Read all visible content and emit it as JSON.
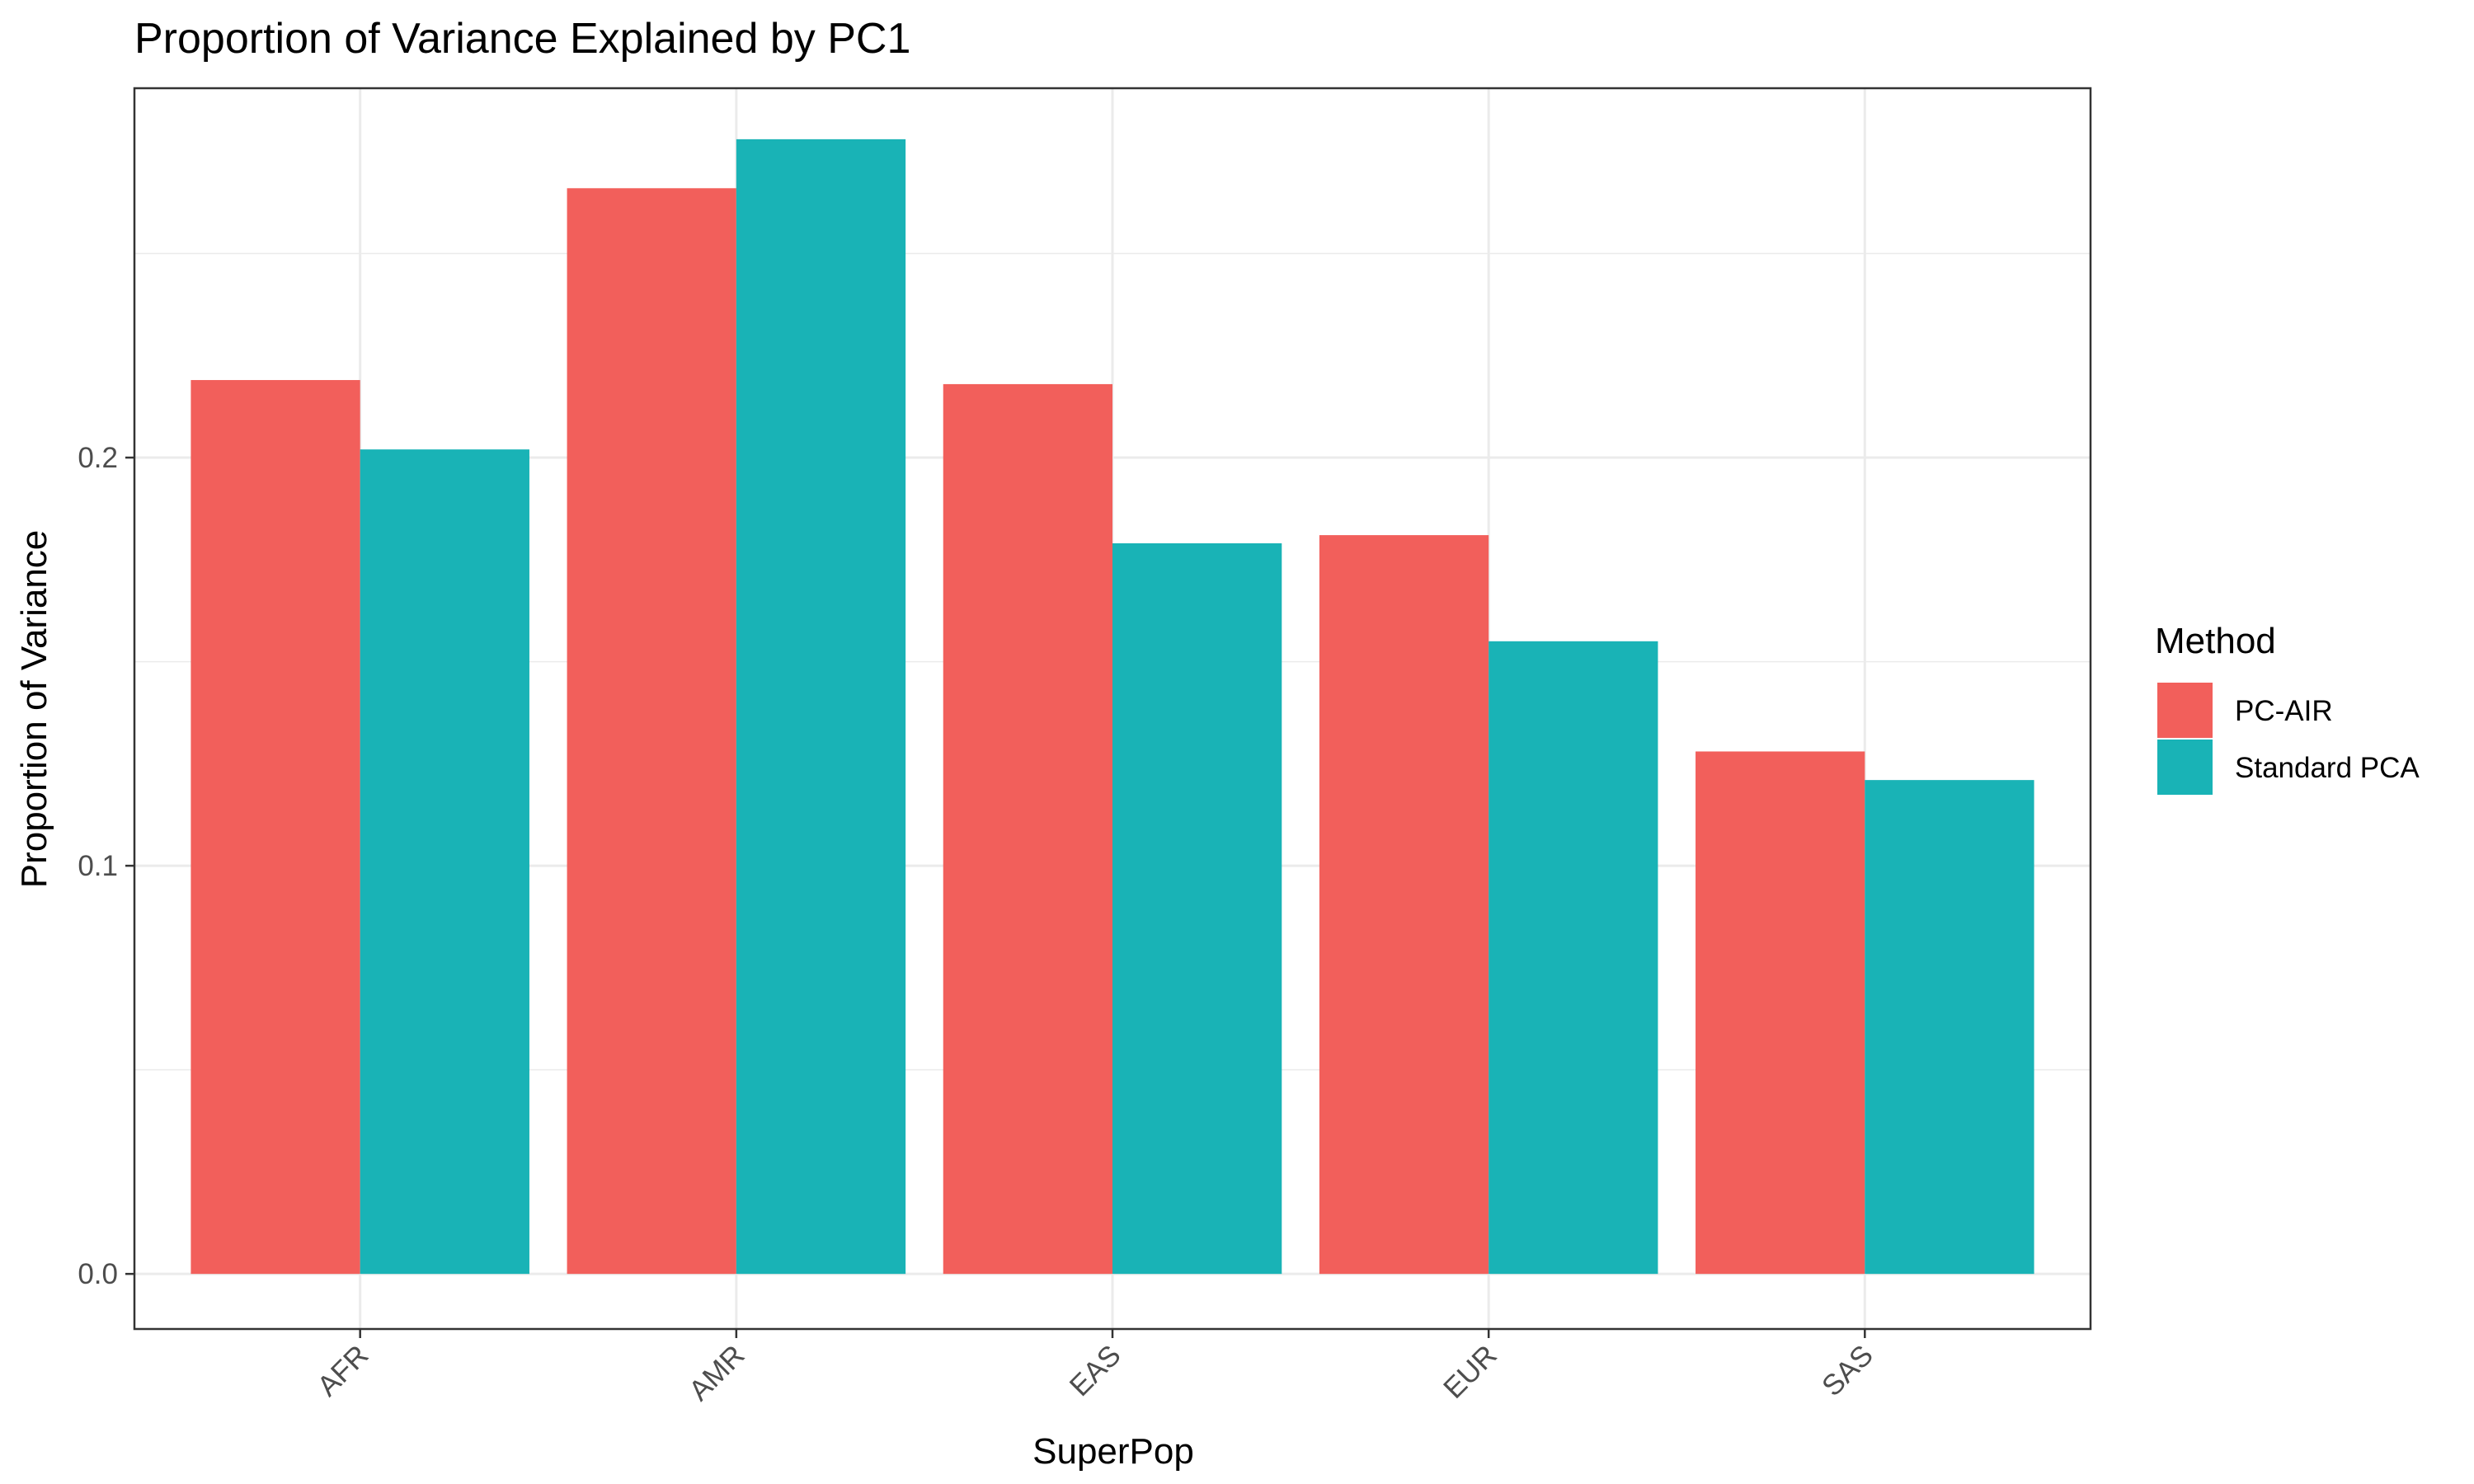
{
  "chart_data": {
    "type": "bar",
    "title": "Proportion of Variance Explained by PC1",
    "xlabel": "SuperPop",
    "ylabel": "Proportion of Variance",
    "categories": [
      "AFR",
      "AMR",
      "EAS",
      "EUR",
      "SAS"
    ],
    "series": [
      {
        "name": "PC-AIR",
        "color": "#F25F5B",
        "values": [
          0.219,
          0.266,
          0.218,
          0.181,
          0.128
        ]
      },
      {
        "name": "Standard PCA",
        "color": "#19B3B6",
        "values": [
          0.202,
          0.278,
          0.179,
          0.155,
          0.121
        ]
      }
    ],
    "ylim": [
      -0.0135,
      0.2905
    ],
    "yticks": [
      0.0,
      0.1,
      0.2
    ],
    "ytick_labels": [
      "0.0",
      "0.1",
      "0.2"
    ],
    "legend_title": "Method",
    "legend_position": "right",
    "grid": true,
    "theme": "bw"
  }
}
